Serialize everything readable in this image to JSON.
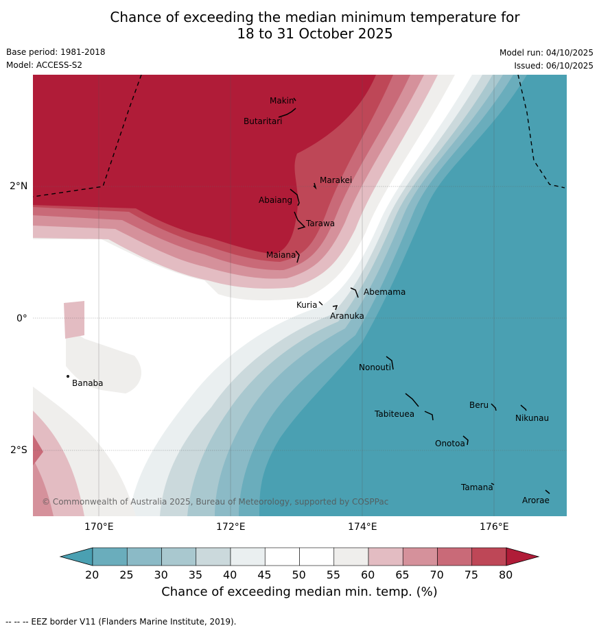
{
  "header": {
    "title_line1": "Chance of exceeding the median minimum temperature for",
    "title_line2": "18 to 31 October 2025",
    "base_period": "Base period: 1981-2018",
    "model": "Model: ACCESS-S2",
    "model_run": "Model run: 04/10/2025",
    "issued": "Issued: 06/10/2025"
  },
  "map": {
    "lat_labels": [
      "2°N",
      "0°",
      "2°S"
    ],
    "lon_labels": [
      "170°E",
      "172°E",
      "174°E",
      "176°E"
    ],
    "places": [
      {
        "name": "Makin"
      },
      {
        "name": "Butaritari"
      },
      {
        "name": "Marakei"
      },
      {
        "name": "Abaiang"
      },
      {
        "name": "Tarawa"
      },
      {
        "name": "Maiana"
      },
      {
        "name": "Abemama"
      },
      {
        "name": "Kuria"
      },
      {
        "name": "Aranuka"
      },
      {
        "name": "Banaba"
      },
      {
        "name": "Nonouti"
      },
      {
        "name": "Beru"
      },
      {
        "name": "Nikunau"
      },
      {
        "name": "Tabiteuea"
      },
      {
        "name": "Onotoa"
      },
      {
        "name": "Tamana"
      },
      {
        "name": "Arorae"
      }
    ],
    "credit": "© Commonwealth of Australia 2025, Bureau of Meteorology, supported by COSPPac"
  },
  "colorbar": {
    "ticks": [
      "20",
      "25",
      "30",
      "35",
      "40",
      "45",
      "50",
      "55",
      "60",
      "65",
      "70",
      "75",
      "80"
    ],
    "colors": [
      "#6aadbc",
      "#8bbac6",
      "#a9c8cf",
      "#cbd9dc",
      "#eaeff0",
      "#ffffff",
      "#ffffff",
      "#efeeec",
      "#e3bcc2",
      "#d5919b",
      "#c96a78",
      "#be4757"
    ],
    "low_color": "#4aa0b2",
    "high_color": "#b01c38",
    "label": "Chance of exceeding median min. temp. (%)"
  },
  "footer": {
    "eez_note": "--  --  -- EEZ border V11 (Flanders Marine Institute, 2019)."
  }
}
